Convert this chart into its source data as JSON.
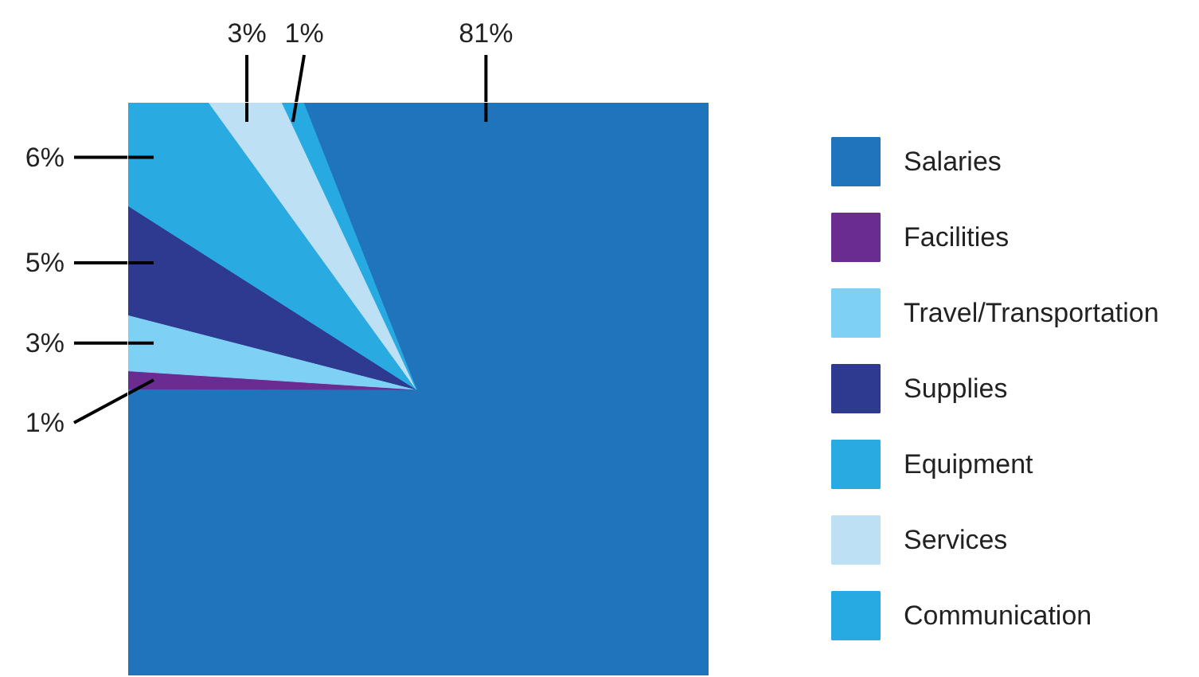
{
  "chart_data": {
    "type": "pie",
    "categories": [
      "Salaries",
      "Facilities",
      "Travel/Transportation",
      "Supplies",
      "Equipment",
      "Services",
      "Communication"
    ],
    "values": [
      81,
      1,
      3,
      5,
      6,
      3,
      1
    ],
    "colors": [
      "#1f74bc",
      "#6a2c91",
      "#7fd0f5",
      "#2e3a8f",
      "#29abe2",
      "#bde0f5",
      "#27aae1"
    ],
    "value_labels": [
      "81%",
      "1%",
      "3%",
      "5%",
      "6%",
      "3%",
      "1%"
    ],
    "legend": "right"
  }
}
